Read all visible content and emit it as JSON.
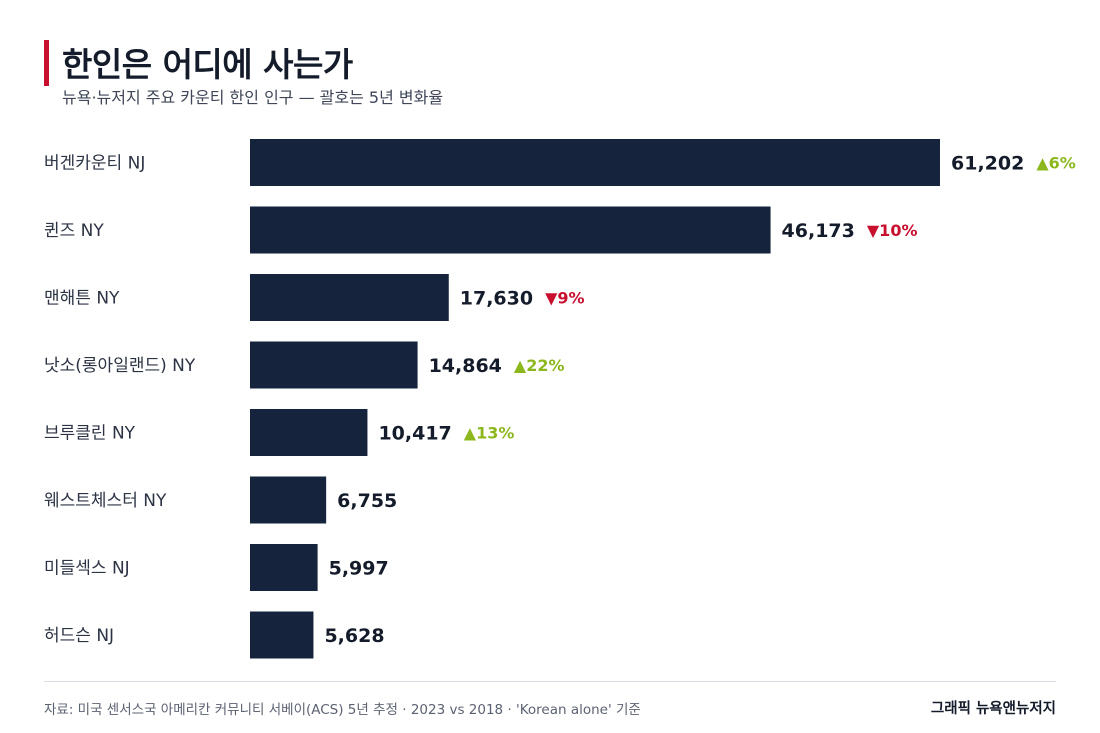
{
  "header": {
    "title": "한인은 어디에 사는가",
    "subtitle": "뉴욕·뉴저지 주요 카운티 한인 인구 — 괄호는 5년 변화율"
  },
  "colors": {
    "accent": "#c8102e",
    "bar": "#15233d",
    "increase": "#8cb81e",
    "decrease": "#c8102e"
  },
  "chart_data": {
    "type": "bar",
    "orientation": "horizontal",
    "categories": [
      "버겐카운티 NJ",
      "퀸즈 NY",
      "맨해튼 NY",
      "낫소(롱아일랜드) NY",
      "브루클린 NY",
      "웨스트체스터 NY",
      "미들섹스 NJ",
      "허드슨 NJ"
    ],
    "values": [
      61202,
      46173,
      17630,
      14864,
      10417,
      6755,
      5997,
      5628
    ],
    "value_labels": [
      "61,202",
      "46,173",
      "17,630",
      "14,864",
      "10,417",
      "6,755",
      "5,997",
      "5,628"
    ],
    "changes": [
      {
        "direction": "up",
        "label": "▲6%"
      },
      {
        "direction": "down",
        "label": "▼10%"
      },
      {
        "direction": "down",
        "label": "▼9%"
      },
      {
        "direction": "up",
        "label": "▲22%"
      },
      {
        "direction": "up",
        "label": "▲13%"
      },
      null,
      null,
      null
    ],
    "xlim": [
      0,
      61202
    ],
    "grid": false,
    "legend": "none"
  },
  "footer": {
    "source": "자료: 미국 센서스국 아메리칸 커뮤니티 서베이(ACS) 5년 추정 · 2023 vs 2018 · 'Korean alone' 기준",
    "credit": "그래픽 뉴욕앤뉴저지"
  }
}
